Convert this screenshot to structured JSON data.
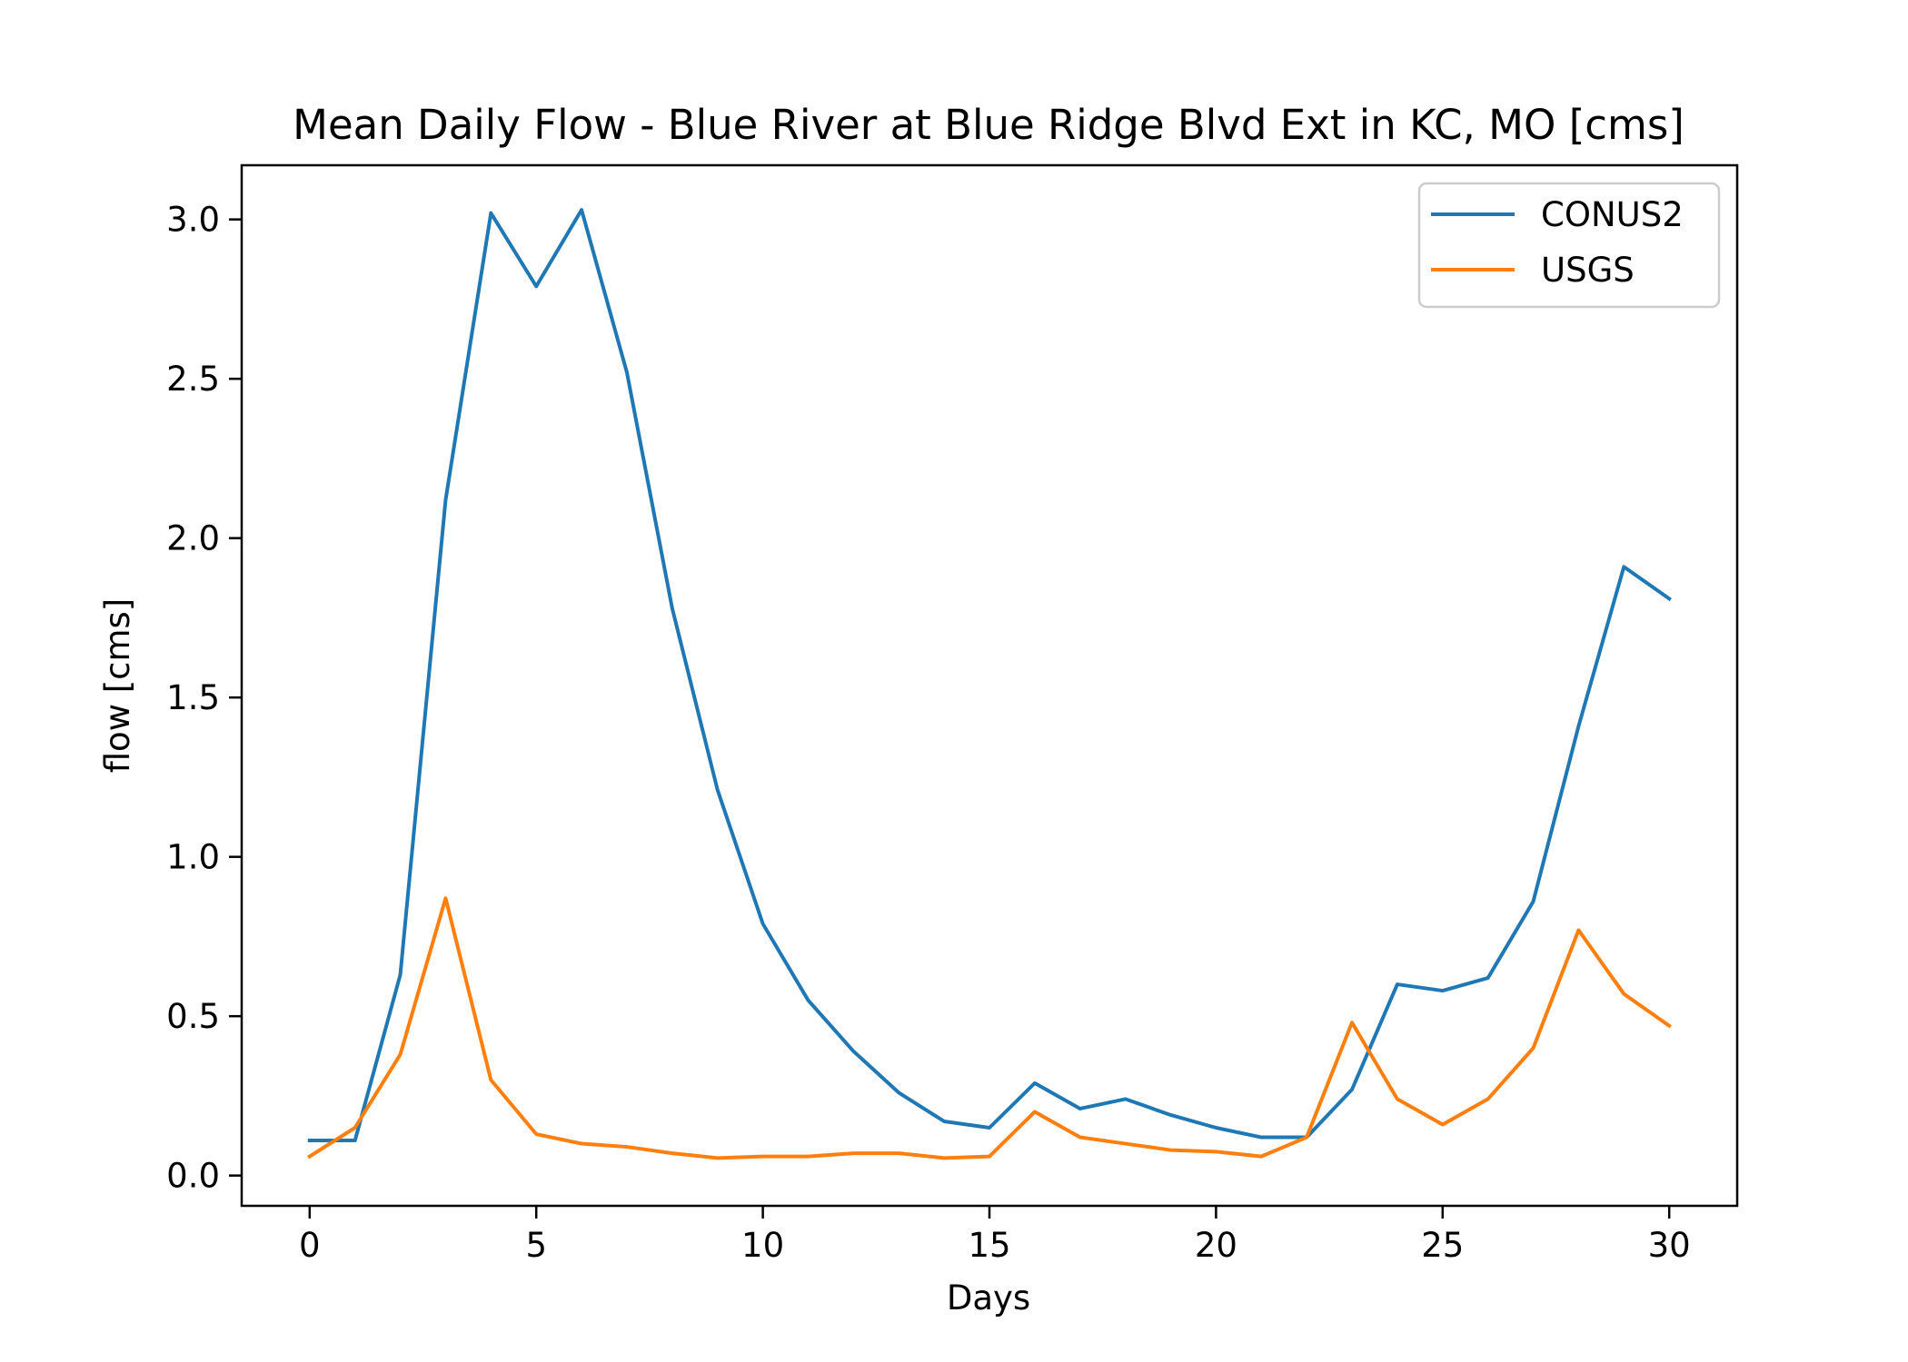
{
  "chart_data": {
    "type": "line",
    "title": "Mean Daily Flow - Blue River at Blue Ridge Blvd Ext in KC, MO [cms]",
    "xlabel": "Days",
    "ylabel": "flow [cms]",
    "xlim": [
      -1.5,
      31.5
    ],
    "ylim": [
      -0.095,
      3.17
    ],
    "grid": false,
    "legend_position": "top-right",
    "x_ticks": [
      {
        "value": 0,
        "label": "0"
      },
      {
        "value": 5,
        "label": "5"
      },
      {
        "value": 10,
        "label": "10"
      },
      {
        "value": 15,
        "label": "15"
      },
      {
        "value": 20,
        "label": "20"
      },
      {
        "value": 25,
        "label": "25"
      },
      {
        "value": 30,
        "label": "30"
      }
    ],
    "y_ticks": [
      {
        "value": 0.0,
        "label": "0.0"
      },
      {
        "value": 0.5,
        "label": "0.5"
      },
      {
        "value": 1.0,
        "label": "1.0"
      },
      {
        "value": 1.5,
        "label": "1.5"
      },
      {
        "value": 2.0,
        "label": "2.0"
      },
      {
        "value": 2.5,
        "label": "2.5"
      },
      {
        "value": 3.0,
        "label": "3.0"
      }
    ],
    "x": [
      0,
      1,
      2,
      3,
      4,
      5,
      6,
      7,
      8,
      9,
      10,
      11,
      12,
      13,
      14,
      15,
      16,
      17,
      18,
      19,
      20,
      21,
      22,
      23,
      24,
      25,
      26,
      27,
      28,
      29,
      30
    ],
    "series": [
      {
        "name": "CONUS2",
        "color": "#1f77b4",
        "values": [
          0.11,
          0.11,
          0.63,
          2.12,
          3.02,
          2.79,
          3.03,
          2.52,
          1.78,
          1.21,
          0.79,
          0.55,
          0.39,
          0.26,
          0.17,
          0.15,
          0.29,
          0.21,
          0.24,
          0.19,
          0.15,
          0.12,
          0.12,
          0.27,
          0.6,
          0.58,
          0.62,
          0.86,
          1.41,
          1.91,
          1.81
        ]
      },
      {
        "name": "USGS",
        "color": "#ff7f0e",
        "values": [
          0.06,
          0.15,
          0.38,
          0.87,
          0.3,
          0.13,
          0.1,
          0.09,
          0.07,
          0.055,
          0.06,
          0.06,
          0.07,
          0.07,
          0.055,
          0.06,
          0.2,
          0.12,
          0.1,
          0.08,
          0.075,
          0.06,
          0.12,
          0.48,
          0.24,
          0.16,
          0.24,
          0.4,
          0.77,
          0.57,
          0.47
        ]
      }
    ]
  }
}
